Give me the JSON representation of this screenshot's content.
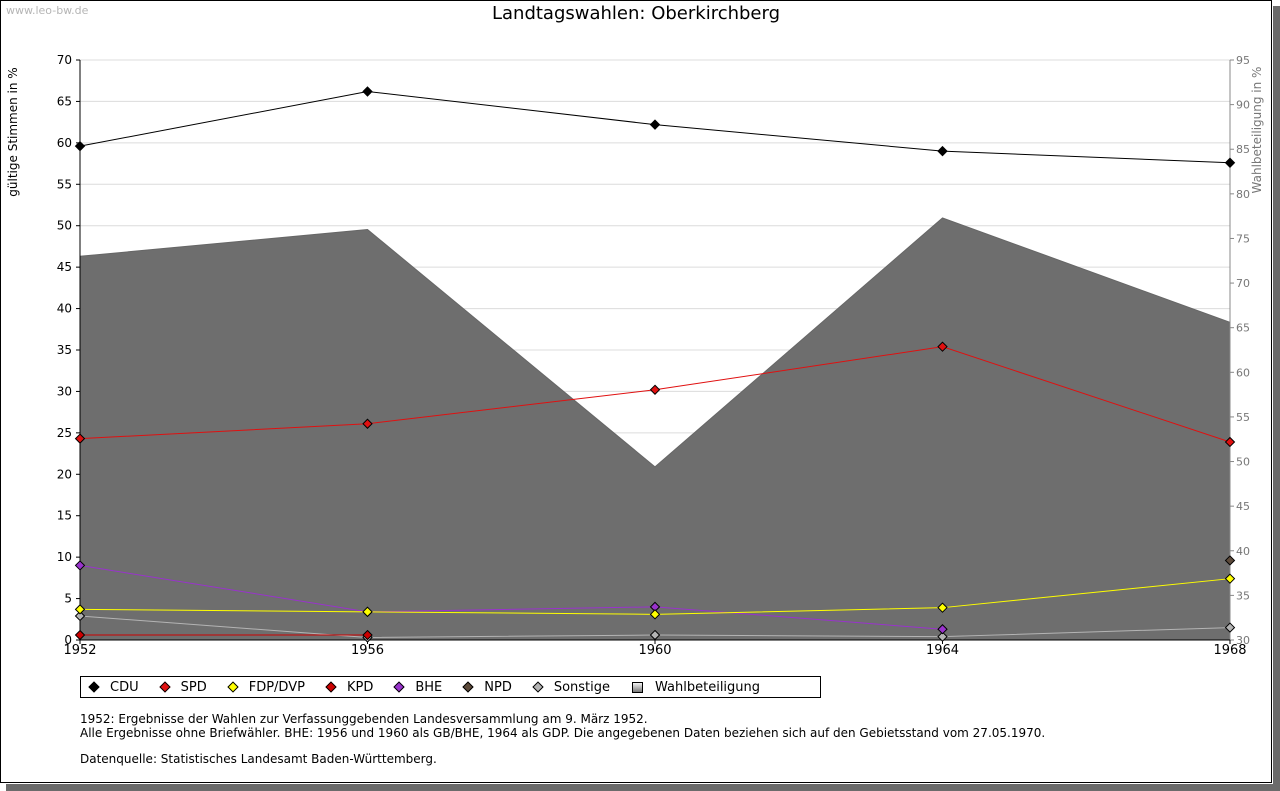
{
  "watermark": "www.leo-bw.de",
  "title": "Landtagswahlen: Oberkirchberg",
  "chart_data": {
    "type": "line",
    "title": "Landtagswahlen: Oberkirchberg",
    "xlabel": "",
    "ylabel": "gültige Stimmen in %",
    "y2label": "Wahlbeteiligung in %",
    "ylim": [
      0,
      70
    ],
    "y2lim": [
      30,
      95
    ],
    "yticks": [
      "0",
      "5",
      "10",
      "15",
      "20",
      "25",
      "30",
      "35",
      "40",
      "45",
      "50",
      "55",
      "60",
      "65",
      "70"
    ],
    "y2ticks": [
      "30",
      "35",
      "40",
      "45",
      "50",
      "55",
      "60",
      "65",
      "70",
      "75",
      "80",
      "85",
      "90",
      "95"
    ],
    "categories": [
      "1952",
      "1956",
      "1960",
      "1964",
      "1968"
    ],
    "grid": true,
    "series": [
      {
        "name": "CDU",
        "color": "#000000",
        "values": [
          59.6,
          66.2,
          62.2,
          59.0,
          57.6
        ]
      },
      {
        "name": "SPD",
        "color": "#e01010",
        "values": [
          24.3,
          26.1,
          30.2,
          35.4,
          23.9
        ]
      },
      {
        "name": "FDP/DVP",
        "color": "#ffff00",
        "values": [
          3.7,
          3.4,
          3.1,
          3.9,
          7.4
        ]
      },
      {
        "name": "KPD",
        "color": "#cc0000",
        "values": [
          0.6,
          0.6,
          null,
          null,
          null
        ]
      },
      {
        "name": "BHE",
        "color": "#9933cc",
        "values": [
          9.0,
          3.4,
          4.0,
          1.3,
          null
        ]
      },
      {
        "name": "NPD",
        "color": "#5c4a3a",
        "values": [
          null,
          null,
          null,
          null,
          9.6
        ]
      },
      {
        "name": "Sonstige",
        "color": "#b4b4b4",
        "values": [
          2.9,
          0.3,
          0.6,
          0.4,
          1.5
        ]
      }
    ],
    "turnout": {
      "name": "Wahlbeteiligung",
      "axis": "y2",
      "values": [
        73.0,
        76.0,
        49.4,
        77.3,
        65.6
      ]
    }
  },
  "legend": [
    {
      "label": "CDU",
      "color": "#000000"
    },
    {
      "label": "SPD",
      "color": "#e01010"
    },
    {
      "label": "FDP/DVP",
      "color": "#ffff00"
    },
    {
      "label": "KPD",
      "color": "#cc0000"
    },
    {
      "label": "BHE",
      "color": "#9933cc"
    },
    {
      "label": "NPD",
      "color": "#5c4a3a"
    },
    {
      "label": "Sonstige",
      "color": "#b4b4b4"
    },
    {
      "label": "Wahlbeteiligung",
      "color": "#aaaaaa"
    }
  ],
  "notes": {
    "line1": "1952: Ergebnisse der Wahlen zur Verfassunggebenden Landesversammlung am 9. März 1952.",
    "line2": "Alle Ergebnisse ohne Briefwähler. BHE: 1956 und 1960 als GB/BHE, 1964 als GDP. Die angegebenen Daten beziehen sich auf den Gebietsstand vom 27.05.1970.",
    "source": "Datenquelle: Statistisches Landesamt Baden-Württemberg."
  }
}
